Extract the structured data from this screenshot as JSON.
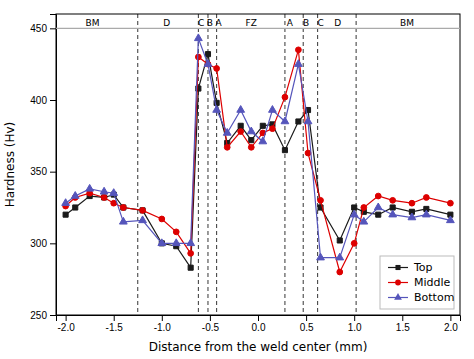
{
  "chart_data": {
    "type": "line",
    "xlabel": "Distance from the weld center (mm)",
    "ylabel": "Hardness (Hv)",
    "xlim": [
      -2.1,
      2.1
    ],
    "ylim": [
      250,
      460
    ],
    "xticks": [
      {
        "value": -2.0,
        "label": "-2.0"
      },
      -1.5,
      {
        "value": -1.0,
        "label": "-1.0"
      },
      -0.5,
      {
        "value": 0.0,
        "label": "0.0"
      },
      0.5,
      {
        "value": 1.0,
        "label": "1.0"
      },
      1.5,
      {
        "value": 2.0,
        "label": "2.0"
      }
    ],
    "yticks": [
      250,
      300,
      350,
      400,
      450
    ],
    "grid": false,
    "legend": "lower right",
    "vlines": [
      -1.25,
      -0.62,
      -0.52,
      -0.43,
      0.28,
      0.47,
      0.62,
      1.02
    ],
    "hline": {
      "value": 450,
      "color": "#aaaaaa"
    },
    "annotations": [
      {
        "x": -1.72,
        "text": "BM"
      },
      {
        "x": -0.95,
        "text": "D"
      },
      {
        "x": -0.59,
        "text": "C"
      },
      {
        "x": -0.5,
        "text": "B"
      },
      {
        "x": -0.41,
        "text": "A"
      },
      {
        "x": -0.07,
        "text": "FZ"
      },
      {
        "x": 0.33,
        "text": "A"
      },
      {
        "x": 0.5,
        "text": "B"
      },
      {
        "x": 0.65,
        "text": "C"
      },
      {
        "x": 0.83,
        "text": "D"
      },
      {
        "x": 1.55,
        "text": "BM"
      }
    ],
    "x": [
      -2.0,
      -1.9,
      -1.75,
      -1.6,
      -1.5,
      -1.4,
      -1.2,
      -1.0,
      -0.85,
      -0.7,
      -0.62,
      -0.52,
      -0.43,
      -0.32,
      -0.18,
      -0.07,
      0.05,
      0.15,
      0.28,
      0.42,
      0.52,
      0.65,
      0.85,
      1.0,
      1.1,
      1.25,
      1.4,
      1.6,
      1.75,
      2.0
    ],
    "series": [
      {
        "name": "Top",
        "color": "#1a1a1a",
        "marker": "square",
        "values": [
          320,
          325,
          333,
          332,
          334,
          325,
          323,
          300,
          298,
          283,
          408,
          432,
          398,
          370,
          382,
          372,
          382,
          383,
          365,
          385,
          393,
          325,
          302,
          325,
          322,
          320,
          325,
          322,
          324,
          320
        ]
      },
      {
        "name": "Middle",
        "color": "#dd0000",
        "marker": "circle",
        "values": [
          326,
          332,
          335,
          332,
          328,
          325,
          323,
          317,
          308,
          293,
          430,
          425,
          422,
          367,
          378,
          367,
          377,
          380,
          402,
          435,
          363,
          330,
          280,
          300,
          325,
          333,
          330,
          328,
          332,
          328
        ]
      },
      {
        "name": "Bottom",
        "color": "#5555bb",
        "marker": "triangle",
        "values": [
          328,
          333,
          338,
          336,
          335,
          315,
          316,
          300,
          300,
          300,
          443,
          425,
          393,
          377,
          393,
          378,
          371,
          393,
          385,
          425,
          385,
          290,
          290,
          320,
          315,
          325,
          320,
          318,
          320,
          316
        ]
      }
    ]
  }
}
